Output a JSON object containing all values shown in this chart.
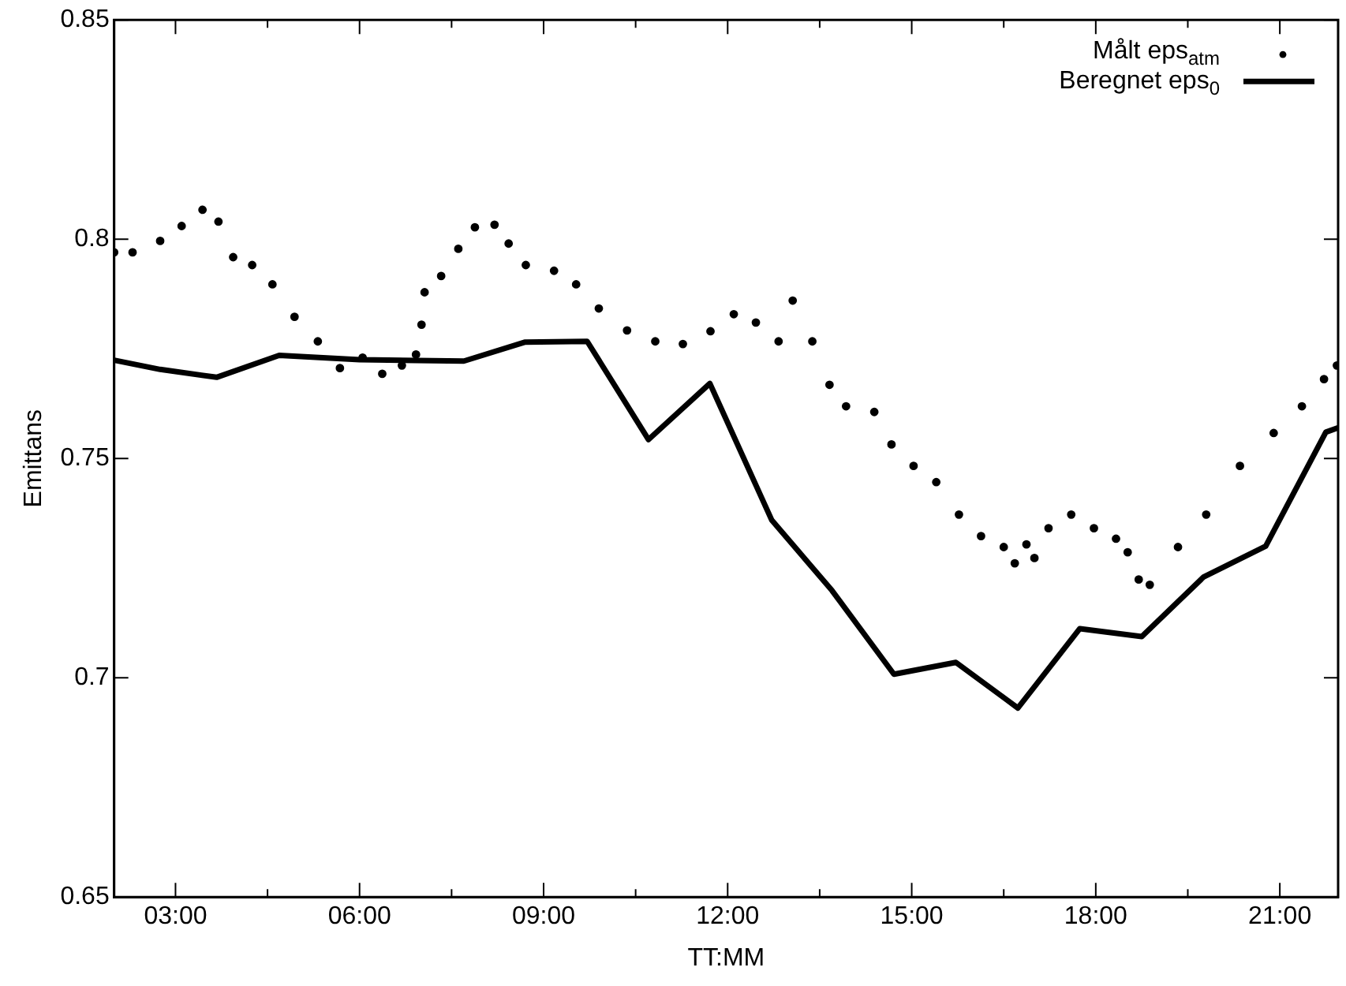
{
  "chart_data": {
    "type": "scatter",
    "xlabel": "TT:MM",
    "ylabel": "Emittans",
    "xlim": [
      2,
      21.95
    ],
    "ylim": [
      0.65,
      0.85
    ],
    "xticks": [
      {
        "value": 3,
        "label": "03:00"
      },
      {
        "value": 4.5,
        "label": null
      },
      {
        "value": 6,
        "label": "06:00"
      },
      {
        "value": 7.5,
        "label": null
      },
      {
        "value": 9,
        "label": "09:00"
      },
      {
        "value": 10.5,
        "label": null
      },
      {
        "value": 12,
        "label": "12:00"
      },
      {
        "value": 13.5,
        "label": null
      },
      {
        "value": 15,
        "label": "15:00"
      },
      {
        "value": 16.5,
        "label": null
      },
      {
        "value": 18,
        "label": "18:00"
      },
      {
        "value": 19.5,
        "label": null
      },
      {
        "value": 21,
        "label": "21:00"
      }
    ],
    "yticks": [
      0.65,
      0.7,
      0.75,
      0.8,
      0.85
    ],
    "grid": false,
    "legend": "top right",
    "series": [
      {
        "name": "Målt eps$_{atm}$",
        "type": "scatter",
        "marker": "circle",
        "color": "#000000",
        "x": [
          2.0,
          2.3,
          2.75,
          3.1,
          3.44,
          3.7,
          3.94,
          4.25,
          4.58,
          4.94,
          5.32,
          5.68,
          6.05,
          6.37,
          6.69,
          6.92,
          7.01,
          7.06,
          7.33,
          7.61,
          7.88,
          8.2,
          8.43,
          8.71,
          9.17,
          9.53,
          9.9,
          10.36,
          10.82,
          11.27,
          11.72,
          12.1,
          12.46,
          12.83,
          13.06,
          13.38,
          13.66,
          13.93,
          14.39,
          14.67,
          15.03,
          15.4,
          15.77,
          16.13,
          16.5,
          16.68,
          16.87,
          17.0,
          17.23,
          17.6,
          17.97,
          18.33,
          18.52,
          18.7,
          18.88,
          19.34,
          19.8,
          20.35,
          20.9,
          21.36,
          21.72,
          21.93
        ],
        "values": [
          0.797,
          0.797,
          0.7996,
          0.803,
          0.8067,
          0.804,
          0.7959,
          0.7941,
          0.7897,
          0.7823,
          0.7767,
          0.7706,
          0.773,
          0.7693,
          0.7712,
          0.7737,
          0.7805,
          0.7879,
          0.7916,
          0.7978,
          0.8027,
          0.8033,
          0.799,
          0.7941,
          0.7928,
          0.7897,
          0.7842,
          0.7792,
          0.7767,
          0.7761,
          0.779,
          0.7829,
          0.781,
          0.7767,
          0.786,
          0.7767,
          0.7668,
          0.7619,
          0.7606,
          0.7532,
          0.7483,
          0.7446,
          0.7372,
          0.7323,
          0.7298,
          0.7261,
          0.7304,
          0.7273,
          0.7341,
          0.7372,
          0.7341,
          0.7317,
          0.7286,
          0.7224,
          0.7212,
          0.7298,
          0.7372,
          0.7483,
          0.7558,
          0.7619,
          0.7681,
          0.7712
        ]
      },
      {
        "name": "Beregnet eps$_{0}$",
        "type": "line",
        "marker": "none",
        "color": "#000000",
        "x": [
          2.0,
          2.75,
          3.67,
          4.69,
          6.0,
          7.7,
          8.69,
          9.71,
          10.71,
          11.71,
          12.72,
          13.7,
          14.71,
          15.72,
          16.73,
          17.74,
          18.75,
          19.76,
          20.77,
          21.75,
          21.95
        ],
        "values": [
          0.7724,
          0.7703,
          0.7685,
          0.7735,
          0.7725,
          0.7722,
          0.7765,
          0.7767,
          0.7543,
          0.7671,
          0.7359,
          0.7199,
          0.7008,
          0.7035,
          0.6931,
          0.7112,
          0.7094,
          0.723,
          0.73,
          0.756,
          0.757
        ]
      }
    ]
  }
}
